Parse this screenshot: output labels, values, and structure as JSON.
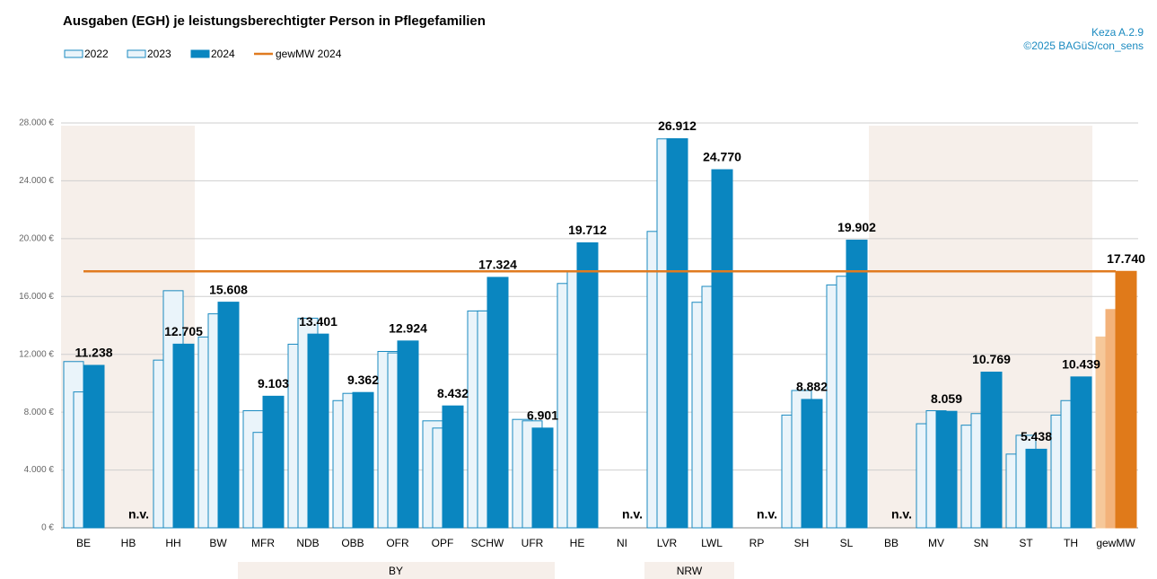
{
  "chart_data": {
    "type": "bar",
    "title": "Ausgaben (EGH) je leistungsberechtigter Person in Pflegefamilien",
    "notes": [
      "Keza A.2.9",
      "©2025 BAGüS/con_sens"
    ],
    "categories": [
      "BE",
      "HB",
      "HH",
      "BW",
      "MFR",
      "NDB",
      "OBB",
      "OFR",
      "OPF",
      "SCHW",
      "UFR",
      "HE",
      "NI",
      "LVR",
      "LWL",
      "RP",
      "SH",
      "SL",
      "BB",
      "MV",
      "SN",
      "ST",
      "TH",
      "gewMW"
    ],
    "series": [
      {
        "name": "2022",
        "color": "#eaf4fa",
        "highlight_color": "#f6c89a",
        "values": [
          11500,
          null,
          11600,
          13200,
          8100,
          12700,
          8800,
          12200,
          7400,
          15000,
          7500,
          16900,
          null,
          20500,
          15600,
          null,
          7800,
          16800,
          null,
          7200,
          7100,
          5100,
          7800,
          13200
        ]
      },
      {
        "name": "2023",
        "color": "#eaf4fa",
        "highlight_color": "#f3b27a",
        "values": [
          9400,
          null,
          16400,
          14800,
          6600,
          14500,
          9300,
          12100,
          6900,
          15000,
          7400,
          17700,
          null,
          26900,
          16700,
          null,
          9500,
          17400,
          null,
          8100,
          7900,
          6400,
          8800,
          15100
        ]
      },
      {
        "name": "2024",
        "color": "#0a86c0",
        "highlight_color": "#e07a1a",
        "values": [
          11238,
          null,
          12705,
          15608,
          9103,
          13401,
          9362,
          12924,
          8432,
          17324,
          6901,
          19712,
          null,
          26912,
          24770,
          null,
          8882,
          19902,
          null,
          8059,
          10769,
          5438,
          10439,
          17740
        ],
        "value_labels": [
          "11.238",
          "n.v.",
          "12.705",
          "15.608",
          "9.103",
          "13.401",
          "9.362",
          "12.924",
          "8.432",
          "17.324",
          "6.901",
          "19.712",
          "n.v.",
          "26.912",
          "24.770",
          "n.v.",
          "8.882",
          "19.902",
          "n.v.",
          "8.059",
          "10.769",
          "5.438",
          "10.439",
          "17.740"
        ]
      }
    ],
    "reference_line": {
      "name": "gewMW 2024",
      "value": 17740,
      "color": "#e07b20"
    },
    "groups": [
      {
        "label": "BY"
      },
      {
        "label": "NRW"
      }
    ],
    "ylim": [
      0,
      28000
    ],
    "yticks": [
      {
        "value": 0,
        "label": "0 €"
      },
      {
        "value": 4000,
        "label": "4.000 €"
      },
      {
        "value": 8000,
        "label": "8.000 €"
      },
      {
        "value": 12000,
        "label": "12.000 €"
      },
      {
        "value": 16000,
        "label": "16.000 €"
      },
      {
        "value": 20000,
        "label": "20.000 €"
      },
      {
        "value": 24000,
        "label": "24.000 €"
      },
      {
        "value": 28000,
        "label": "28.000 €"
      }
    ],
    "grid": true
  }
}
